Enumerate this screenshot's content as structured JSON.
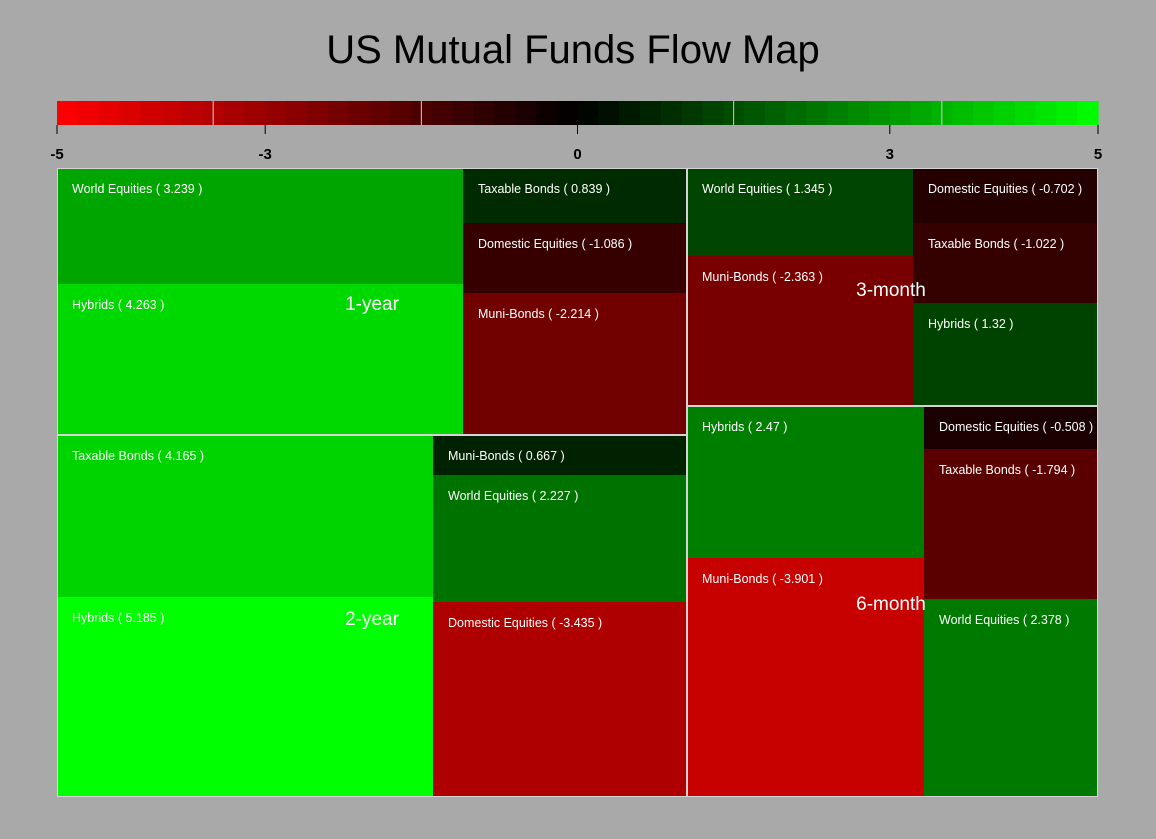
{
  "chart_data": {
    "type": "treemap",
    "title": "US Mutual Funds Flow Map",
    "color_scale": {
      "min": -5,
      "max": 5,
      "low_color": "#ff0000",
      "mid_color": "#000000",
      "high_color": "#00ff00",
      "ticks": [
        {
          "value": -5,
          "label": "-5"
        },
        {
          "value": -3,
          "label": "-3"
        },
        {
          "value": 0,
          "label": "0"
        },
        {
          "value": 3,
          "label": "3"
        },
        {
          "value": 5,
          "label": "5"
        }
      ]
    },
    "groups": [
      {
        "name": "1-year",
        "items": [
          {
            "name": "World Equities",
            "value": 3.239,
            "label": "World Equities ( 3.239 )"
          },
          {
            "name": "Hybrids",
            "value": 4.263,
            "label": "Hybrids ( 4.263 )"
          },
          {
            "name": "Taxable Bonds",
            "value": 0.839,
            "label": "Taxable Bonds ( 0.839 )"
          },
          {
            "name": "Domestic Equities",
            "value": -1.086,
            "label": "Domestic Equities ( -1.086 )"
          },
          {
            "name": "Muni-Bonds",
            "value": -2.214,
            "label": "Muni-Bonds ( -2.214 )"
          }
        ]
      },
      {
        "name": "2-year",
        "items": [
          {
            "name": "Taxable Bonds",
            "value": 4.165,
            "label": "Taxable Bonds ( 4.165 )"
          },
          {
            "name": "Hybrids",
            "value": 5.185,
            "label": "Hybrids ( 5.185 )"
          },
          {
            "name": "Muni-Bonds",
            "value": 0.667,
            "label": "Muni-Bonds ( 0.667 )"
          },
          {
            "name": "World Equities",
            "value": 2.227,
            "label": "World Equities ( 2.227 )"
          },
          {
            "name": "Domestic Equities",
            "value": -3.435,
            "label": "Domestic Equities ( -3.435 )"
          }
        ]
      },
      {
        "name": "3-month",
        "items": [
          {
            "name": "World Equities",
            "value": 1.345,
            "label": "World Equities ( 1.345 )"
          },
          {
            "name": "Muni-Bonds",
            "value": -2.363,
            "label": "Muni-Bonds ( -2.363 )"
          },
          {
            "name": "Domestic Equities",
            "value": -0.702,
            "label": "Domestic Equities ( -0.702 )"
          },
          {
            "name": "Taxable Bonds",
            "value": -1.022,
            "label": "Taxable Bonds ( -1.022 )"
          },
          {
            "name": "Hybrids",
            "value": 1.32,
            "label": "Hybrids ( 1.32 )"
          }
        ]
      },
      {
        "name": "6-month",
        "items": [
          {
            "name": "Hybrids",
            "value": 2.47,
            "label": "Hybrids ( 2.47 )"
          },
          {
            "name": "Muni-Bonds",
            "value": -3.901,
            "label": "Muni-Bonds ( -3.901 )"
          },
          {
            "name": "Domestic Equities",
            "value": -0.508,
            "label": "Domestic Equities ( -0.508 )"
          },
          {
            "name": "Taxable Bonds",
            "value": -1.794,
            "label": "Taxable Bonds ( -1.794 )"
          },
          {
            "name": "World Equities",
            "value": 2.378,
            "label": "World Equities ( 2.378 )"
          }
        ]
      }
    ]
  }
}
